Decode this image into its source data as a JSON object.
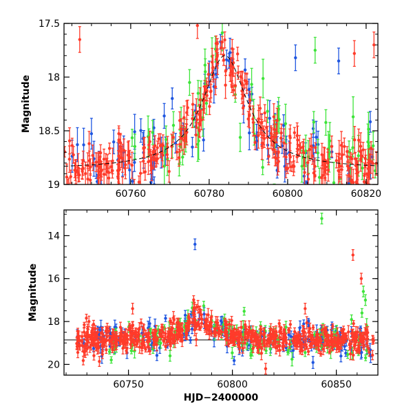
{
  "colors": {
    "blue": "#1f56e0",
    "red": "#ff3b2a",
    "green": "#3ee43a",
    "model": "#000000"
  },
  "chart_data": [
    {
      "type": "scatter",
      "xlabel": "",
      "ylabel": "Magnitude",
      "xlim": [
        60743,
        60823
      ],
      "ylim": [
        19.0,
        17.5
      ],
      "inverted_y": true,
      "x_ticks": [
        60760,
        60780,
        60800,
        60820
      ],
      "x_tick_labels": [
        "60760",
        "60780",
        "60800",
        "60820"
      ],
      "y_ticks": [
        17.5,
        18,
        18.5,
        19
      ],
      "y_tick_labels": [
        "17.5",
        "18",
        "18.5",
        "19"
      ],
      "grid": false,
      "legend": "none",
      "model_curve": {
        "style": "dashed",
        "peak_x": 60784,
        "peak_mag": 17.8,
        "baseline_mag": 18.86,
        "width_days": 7
      },
      "series": [
        {
          "color": "red",
          "n_points": 320,
          "x_range": [
            60743,
            60823
          ],
          "mag_scatter": 0.11,
          "err_typical": 0.09
        },
        {
          "color": "blue",
          "n_points": 95,
          "x_range": [
            60743,
            60823
          ],
          "mag_scatter": 0.18,
          "err_typical": 0.11
        },
        {
          "color": "green",
          "n_points": 70,
          "x_range": [
            60760,
            60823
          ],
          "mag_scatter": 0.2,
          "err_typical": 0.13
        }
      ],
      "outliers": [
        {
          "x": 60747,
          "y": 17.65,
          "color": "red"
        },
        {
          "x": 60777,
          "y": 17.52,
          "color": "red"
        },
        {
          "x": 60807,
          "y": 17.75,
          "color": "green"
        },
        {
          "x": 60813,
          "y": 17.85,
          "color": "blue"
        },
        {
          "x": 60817,
          "y": 17.78,
          "color": "red"
        },
        {
          "x": 60822,
          "y": 17.7,
          "color": "red"
        },
        {
          "x": 60802,
          "y": 17.82,
          "color": "blue"
        },
        {
          "x": 60775,
          "y": 18.05,
          "color": "green"
        },
        {
          "x": 60779,
          "y": 17.95,
          "color": "green"
        }
      ]
    },
    {
      "type": "scatter",
      "xlabel": "HJD−2400000",
      "ylabel": "Magnitude",
      "xlim": [
        60719,
        60870
      ],
      "ylim": [
        20.5,
        12.8
      ],
      "inverted_y": true,
      "x_ticks": [
        60750,
        60800,
        60850
      ],
      "x_tick_labels": [
        "60750",
        "60800",
        "60850"
      ],
      "y_ticks": [
        14,
        16,
        18,
        20
      ],
      "y_tick_labels": [
        "14",
        "16",
        "18",
        "20"
      ],
      "grid": false,
      "legend": "none",
      "model_curve": {
        "style": "solid",
        "baseline_mag": 18.86
      },
      "series": [
        {
          "color": "red",
          "n_points": 600,
          "x_range": [
            60725,
            60868
          ],
          "mag_scatter": 0.3,
          "err_typical": 0.2
        },
        {
          "color": "blue",
          "n_points": 170,
          "x_range": [
            60725,
            60868
          ],
          "mag_scatter": 0.4,
          "err_typical": 0.22
        },
        {
          "color": "green",
          "n_points": 130,
          "x_range": [
            60740,
            60868
          ],
          "mag_scatter": 0.45,
          "err_typical": 0.22
        }
      ],
      "outliers": [
        {
          "x": 60843,
          "y": 13.2,
          "color": "green"
        },
        {
          "x": 60782,
          "y": 14.4,
          "color": "blue"
        },
        {
          "x": 60858,
          "y": 14.9,
          "color": "red"
        },
        {
          "x": 60862,
          "y": 16.0,
          "color": "red"
        },
        {
          "x": 60863,
          "y": 16.6,
          "color": "green"
        },
        {
          "x": 60864,
          "y": 17.0,
          "color": "green"
        },
        {
          "x": 60752,
          "y": 17.4,
          "color": "red"
        },
        {
          "x": 60731,
          "y": 18.0,
          "color": "red"
        },
        {
          "x": 60770,
          "y": 19.6,
          "color": "green"
        },
        {
          "x": 60816,
          "y": 20.2,
          "color": "red"
        },
        {
          "x": 60835,
          "y": 17.4,
          "color": "red"
        }
      ]
    }
  ]
}
